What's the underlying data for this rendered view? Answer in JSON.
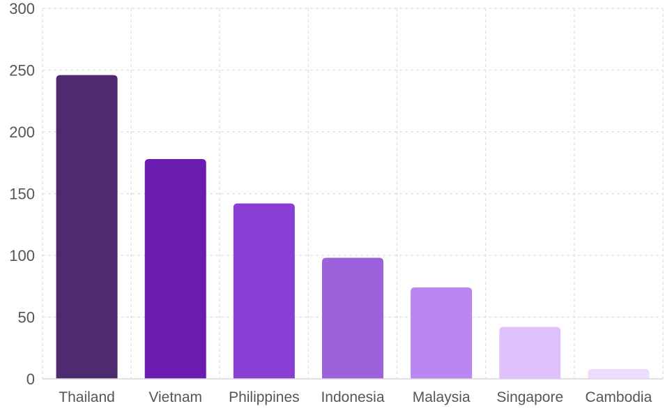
{
  "chart_data": {
    "type": "bar",
    "title": "",
    "xlabel": "",
    "ylabel": "",
    "categories": [
      "Thailand",
      "Vietnam",
      "Philippines",
      "Indonesia",
      "Malaysia",
      "Singapore",
      "Cambodia"
    ],
    "values": [
      246,
      178,
      142,
      98,
      74,
      42,
      8
    ],
    "ylim": [
      0,
      300
    ],
    "yticks": [
      0,
      50,
      100,
      150,
      200,
      250,
      300
    ],
    "ytick_labels": [
      "0",
      "50",
      "100",
      "150",
      "200",
      "250",
      "300"
    ],
    "grid": true,
    "legend": "none",
    "bar_colors": [
      "#4e2a6e",
      "#6a1bb0",
      "#8a3fd4",
      "#9b62dc",
      "#bb85f2",
      "#dfc1fc",
      "#eddcfd"
    ]
  }
}
